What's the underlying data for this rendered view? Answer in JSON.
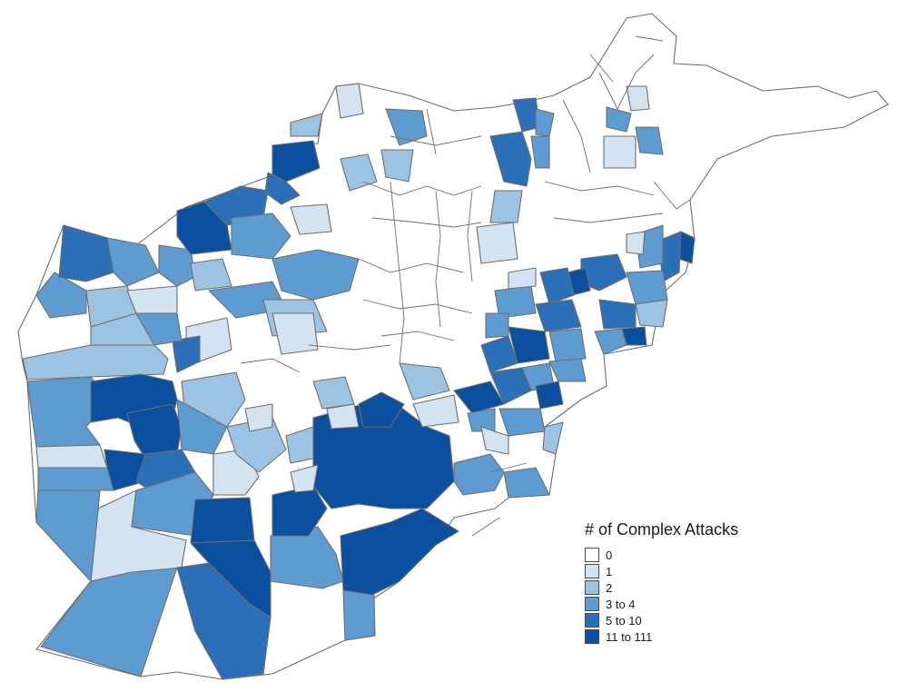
{
  "map": {
    "legend": {
      "title": "# of Complex Attacks",
      "bins": [
        {
          "label": "0",
          "color": "#ffffff"
        },
        {
          "label": "1",
          "color": "#d3e3f1"
        },
        {
          "label": "2",
          "color": "#9dc3e2"
        },
        {
          "label": "3 to 4",
          "color": "#5e9bd0"
        },
        {
          "label": "5 to 10",
          "color": "#2a6fb8"
        },
        {
          "label": "11 to 111",
          "color": "#0b4f9f"
        }
      ]
    },
    "colors": {
      "border": "#6e6e6e",
      "background": "#ffffff"
    }
  }
}
